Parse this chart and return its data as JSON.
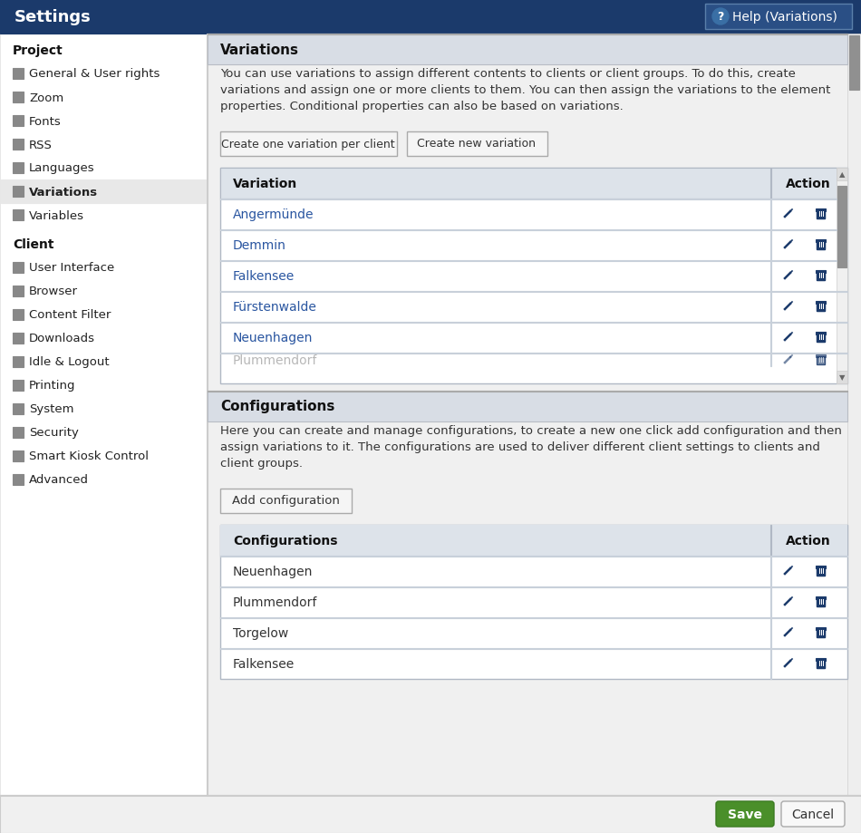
{
  "header_bg": "#1b3a6b",
  "header_text": "Settings",
  "help_btn_text": "Help (Variations)",
  "sidebar_bg": "#ffffff",
  "sidebar_selected_bg": "#e8e8e8",
  "project_items": [
    [
      "General & User rights"
    ],
    [
      "Zoom"
    ],
    [
      "Fonts"
    ],
    [
      "RSS"
    ],
    [
      "Languages"
    ],
    [
      "Variations"
    ],
    [
      "Variables"
    ]
  ],
  "client_items": [
    [
      "User Interface"
    ],
    [
      "Browser"
    ],
    [
      "Content Filter"
    ],
    [
      "Downloads"
    ],
    [
      "Idle & Logout"
    ],
    [
      "Printing"
    ],
    [
      "System"
    ],
    [
      "Security"
    ],
    [
      "Smart Kiosk Control"
    ],
    [
      "Advanced"
    ]
  ],
  "variations_title": "Variations",
  "variations_desc_lines": [
    "You can use variations to assign different contents to clients or client groups. To do this, create",
    "variations and assign one or more clients to them. You can then assign the variations to the element",
    "properties. Conditional properties can also be based on variations."
  ],
  "btn1_text": "Create one variation per client",
  "btn2_text": "Create new variation",
  "variation_items": [
    "Angermünde",
    "Demmin",
    "Falkensee",
    "Fürstenwalde",
    "Neuenhagen",
    "Plummendorf"
  ],
  "configs_title": "Configurations",
  "configs_desc_lines": [
    "Here you can create and manage configurations, to create a new one click add configuration and then",
    "assign variations to it. The configurations are used to deliver different client settings to clients and",
    "client groups."
  ],
  "add_config_btn": "Add configuration",
  "config_items": [
    "Neuenhagen",
    "Plummendorf",
    "Torgelow",
    "Falkensee"
  ],
  "save_btn": "Save",
  "cancel_btn": "Cancel",
  "link_blue": "#2955a0",
  "icon_blue": "#1b3a6b",
  "save_btn_bg": "#4a8f2a",
  "section_header_bg": "#d8dde5",
  "table_header_bg": "#dde3ea",
  "btn_bg": "#f0f0f0",
  "border_color": "#b0b8c4",
  "row_border": "#c8d0da",
  "scrollbar_bg": "#c8c8c8",
  "scrollbar_thumb": "#909090"
}
